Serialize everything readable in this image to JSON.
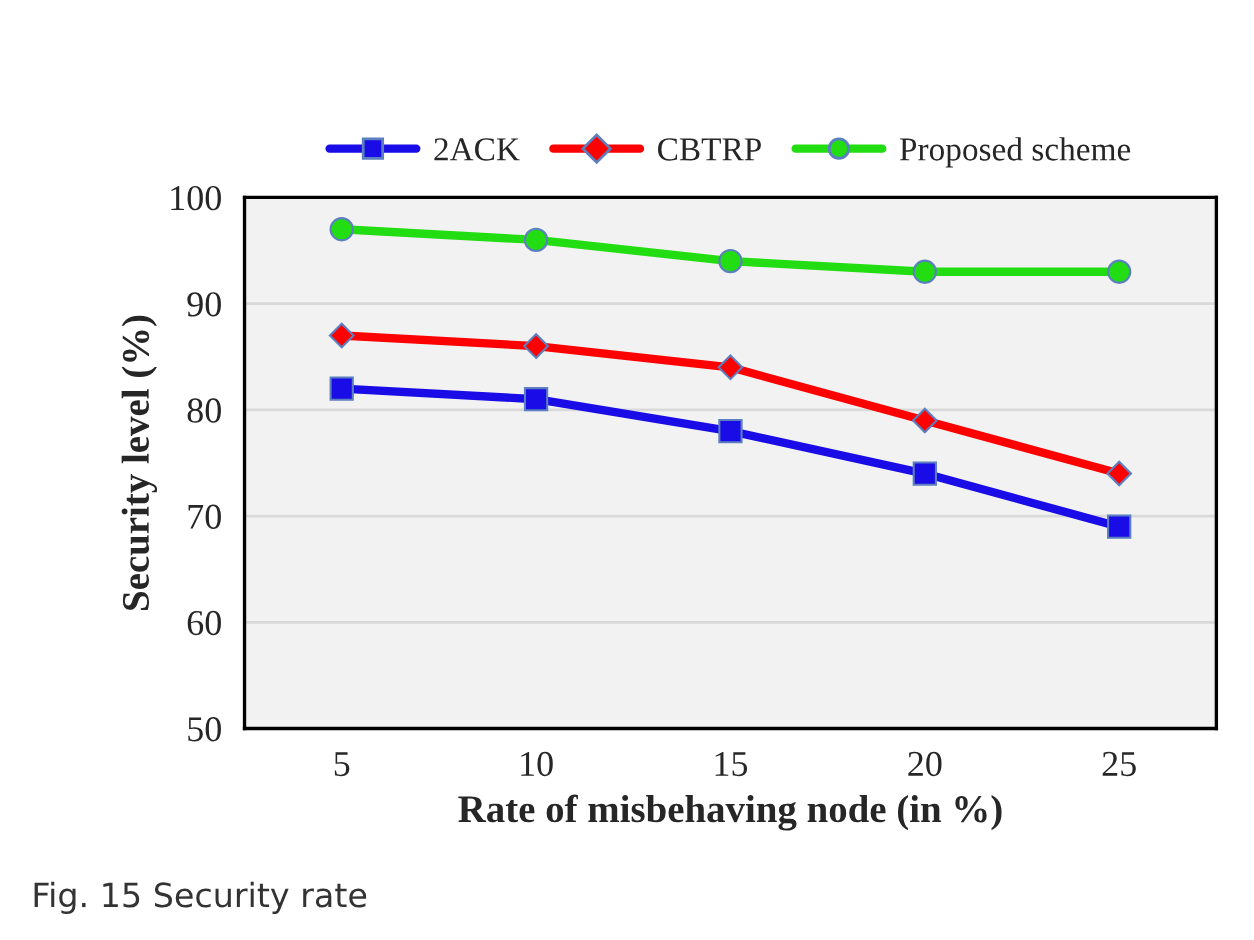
{
  "chart_data": {
    "type": "line",
    "xlabel": "Rate of misbehaving node (in %)",
    "ylabel": "Security level (%)",
    "categories": [
      "5",
      "10",
      "15",
      "20",
      "25"
    ],
    "series": [
      {
        "name": "2ACK",
        "color": "#1a0ce6",
        "marker": "square",
        "values": [
          82,
          81,
          78,
          74,
          69
        ]
      },
      {
        "name": "CBTRP",
        "color": "#ff0000",
        "marker": "diamond",
        "values": [
          87,
          86,
          84,
          79,
          74
        ]
      },
      {
        "name": "Proposed scheme",
        "color": "#22dd11",
        "marker": "circle",
        "values": [
          97,
          96,
          94,
          93,
          93
        ]
      }
    ],
    "ylim": [
      50,
      100
    ],
    "yticks": [
      50,
      60,
      70,
      80,
      90,
      100
    ],
    "grid": "y",
    "legend": "top",
    "annotations": [
      "Fig. 15 Security rate"
    ]
  }
}
